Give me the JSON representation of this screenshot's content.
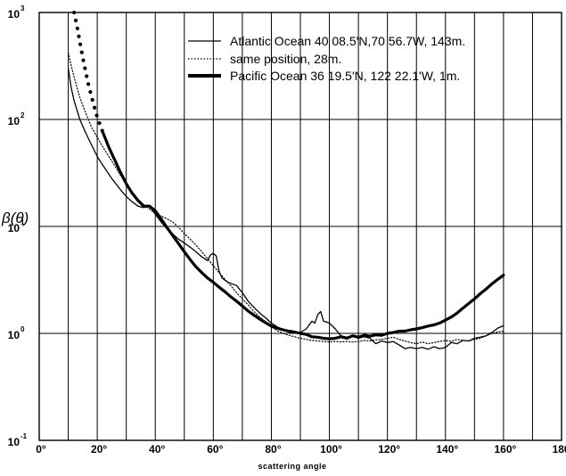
{
  "chart_data": {
    "type": "line",
    "title": "",
    "xlabel": "scattering angle",
    "ylabel": "β(θ)",
    "xlim": [
      0,
      180
    ],
    "ylim": [
      0.1,
      1000
    ],
    "yscale": "log",
    "grid": true,
    "legend_position": "top-right",
    "x_ticks": [
      {
        "value": 0,
        "label": "0°"
      },
      {
        "value": 20,
        "label": "20°"
      },
      {
        "value": 40,
        "label": "40°"
      },
      {
        "value": 60,
        "label": "60°"
      },
      {
        "value": 80,
        "label": "80°"
      },
      {
        "value": 100,
        "label": "100°"
      },
      {
        "value": 120,
        "label": "120°"
      },
      {
        "value": 140,
        "label": "140°"
      },
      {
        "value": 160,
        "label": "160°"
      },
      {
        "value": 180,
        "label": "180°"
      }
    ],
    "y_ticks": [
      {
        "value": 0.1,
        "base": "10",
        "exp": "-1"
      },
      {
        "value": 1,
        "base": "10",
        "exp": "0"
      },
      {
        "value": 10,
        "base": "10",
        "exp": "1"
      },
      {
        "value": 100,
        "base": "10",
        "exp": "2"
      },
      {
        "value": 1000,
        "base": "10",
        "exp": "3"
      }
    ],
    "series": [
      {
        "name": "Atlantic Ocean 40 08.5'N,70 56.7W, 143m.",
        "style": "thin",
        "color": "#000000",
        "points": [
          [
            10,
            300
          ],
          [
            11,
            200
          ],
          [
            12,
            150
          ],
          [
            14,
            100
          ],
          [
            16,
            75
          ],
          [
            18,
            58
          ],
          [
            20,
            45
          ],
          [
            22,
            37
          ],
          [
            25,
            28
          ],
          [
            28,
            22
          ],
          [
            30,
            19
          ],
          [
            32,
            17
          ],
          [
            34,
            15.5
          ],
          [
            36,
            15
          ],
          [
            38,
            15.5
          ],
          [
            40,
            13
          ],
          [
            42,
            11
          ],
          [
            44,
            9.5
          ],
          [
            46,
            8.5
          ],
          [
            48,
            7.6
          ],
          [
            50,
            7
          ],
          [
            52,
            6.4
          ],
          [
            54,
            5.8
          ],
          [
            56,
            5.2
          ],
          [
            58,
            4.8
          ],
          [
            59,
            5.4
          ],
          [
            60,
            5.6
          ],
          [
            61,
            5.3
          ],
          [
            62,
            3.8
          ],
          [
            63,
            3.3
          ],
          [
            65,
            3.0
          ],
          [
            68,
            2.8
          ],
          [
            70,
            2.4
          ],
          [
            72,
            2.0
          ],
          [
            74,
            1.75
          ],
          [
            76,
            1.55
          ],
          [
            78,
            1.4
          ],
          [
            80,
            1.25
          ],
          [
            82,
            1.15
          ],
          [
            84,
            1.08
          ],
          [
            86,
            1.03
          ],
          [
            88,
            1.01
          ],
          [
            90,
            1.02
          ],
          [
            92,
            1.1
          ],
          [
            94,
            1.3
          ],
          [
            95,
            1.25
          ],
          [
            96,
            1.5
          ],
          [
            97,
            1.6
          ],
          [
            98,
            1.3
          ],
          [
            100,
            1.25
          ],
          [
            102,
            1.1
          ],
          [
            104,
            0.95
          ],
          [
            106,
            0.92
          ],
          [
            108,
            0.95
          ],
          [
            110,
            0.9
          ],
          [
            112,
            0.93
          ],
          [
            114,
            0.9
          ],
          [
            116,
            0.8
          ],
          [
            118,
            0.85
          ],
          [
            120,
            0.82
          ],
          [
            122,
            0.84
          ],
          [
            124,
            0.78
          ],
          [
            126,
            0.72
          ],
          [
            128,
            0.74
          ],
          [
            130,
            0.72
          ],
          [
            132,
            0.74
          ],
          [
            134,
            0.71
          ],
          [
            136,
            0.75
          ],
          [
            138,
            0.72
          ],
          [
            140,
            0.74
          ],
          [
            142,
            0.82
          ],
          [
            144,
            0.8
          ],
          [
            146,
            0.86
          ],
          [
            148,
            0.85
          ],
          [
            150,
            0.9
          ],
          [
            152,
            0.92
          ],
          [
            154,
            0.95
          ],
          [
            156,
            1.02
          ],
          [
            158,
            1.12
          ],
          [
            160,
            1.18
          ]
        ]
      },
      {
        "name": "same position, 28m.",
        "style": "dotted",
        "color": "#000000",
        "points": [
          [
            10,
            420
          ],
          [
            11,
            320
          ],
          [
            12,
            250
          ],
          [
            14,
            160
          ],
          [
            16,
            115
          ],
          [
            18,
            85
          ],
          [
            20,
            68
          ],
          [
            22,
            55
          ],
          [
            24,
            45
          ],
          [
            26,
            37
          ],
          [
            28,
            30
          ],
          [
            30,
            25
          ],
          [
            32,
            21
          ],
          [
            34,
            18
          ],
          [
            36,
            16
          ],
          [
            38,
            14.5
          ],
          [
            40,
            13.2
          ],
          [
            42,
            12.5
          ],
          [
            44,
            11.8
          ],
          [
            46,
            11
          ],
          [
            48,
            9.8
          ],
          [
            50,
            8.6
          ],
          [
            52,
            7.6
          ],
          [
            54,
            6.7
          ],
          [
            56,
            5.8
          ],
          [
            58,
            5.0
          ],
          [
            60,
            4.3
          ],
          [
            62,
            3.7
          ],
          [
            64,
            3.2
          ],
          [
            66,
            2.8
          ],
          [
            68,
            2.4
          ],
          [
            70,
            2.1
          ],
          [
            72,
            1.85
          ],
          [
            74,
            1.6
          ],
          [
            76,
            1.42
          ],
          [
            78,
            1.28
          ],
          [
            80,
            1.15
          ],
          [
            82,
            1.06
          ],
          [
            84,
            1.0
          ],
          [
            86,
            0.96
          ],
          [
            88,
            0.93
          ],
          [
            90,
            0.9
          ],
          [
            92,
            0.88
          ],
          [
            94,
            0.86
          ],
          [
            96,
            0.85
          ],
          [
            98,
            0.84
          ],
          [
            100,
            0.83
          ],
          [
            102,
            0.84
          ],
          [
            104,
            0.83
          ],
          [
            106,
            0.84
          ],
          [
            108,
            0.83
          ],
          [
            110,
            0.84
          ],
          [
            112,
            0.86
          ],
          [
            114,
            0.85
          ],
          [
            116,
            0.87
          ],
          [
            118,
            0.88
          ],
          [
            120,
            0.9
          ],
          [
            122,
            0.92
          ],
          [
            124,
            0.88
          ],
          [
            126,
            0.85
          ],
          [
            128,
            0.82
          ],
          [
            130,
            0.8
          ],
          [
            132,
            0.83
          ],
          [
            134,
            0.8
          ],
          [
            136,
            0.82
          ],
          [
            138,
            0.84
          ],
          [
            140,
            0.86
          ],
          [
            142,
            0.84
          ],
          [
            144,
            0.88
          ],
          [
            146,
            0.86
          ],
          [
            148,
            0.85
          ],
          [
            150,
            0.88
          ],
          [
            152,
            0.9
          ],
          [
            154,
            0.95
          ],
          [
            156,
            1.0
          ],
          [
            158,
            1.03
          ],
          [
            160,
            1.05
          ]
        ]
      },
      {
        "name": "Pacific Ocean 36 19.5'N, 122 22.1'W, 1m.",
        "style": "thick",
        "color": "#000000",
        "start_style": "dotted",
        "points": [
          [
            12,
            1000
          ],
          [
            13,
            750
          ],
          [
            14,
            530
          ],
          [
            15,
            380
          ],
          [
            16,
            280
          ],
          [
            17,
            210
          ],
          [
            18,
            165
          ],
          [
            19,
            130
          ],
          [
            20,
            105
          ],
          [
            22,
            75
          ],
          [
            24,
            55
          ],
          [
            26,
            42
          ],
          [
            28,
            32
          ],
          [
            30,
            25
          ],
          [
            32,
            20.5
          ],
          [
            34,
            17.5
          ],
          [
            36,
            15.5
          ],
          [
            38,
            15.5
          ],
          [
            40,
            14
          ],
          [
            42,
            11.8
          ],
          [
            44,
            9.8
          ],
          [
            46,
            8.2
          ],
          [
            48,
            6.9
          ],
          [
            50,
            5.8
          ],
          [
            52,
            4.9
          ],
          [
            54,
            4.2
          ],
          [
            56,
            3.7
          ],
          [
            58,
            3.3
          ],
          [
            60,
            3.0
          ],
          [
            62,
            2.7
          ],
          [
            64,
            2.45
          ],
          [
            66,
            2.2
          ],
          [
            68,
            2.0
          ],
          [
            70,
            1.8
          ],
          [
            72,
            1.62
          ],
          [
            74,
            1.48
          ],
          [
            76,
            1.36
          ],
          [
            78,
            1.26
          ],
          [
            80,
            1.17
          ],
          [
            82,
            1.12
          ],
          [
            84,
            1.08
          ],
          [
            86,
            1.05
          ],
          [
            88,
            1.03
          ],
          [
            90,
            1.0
          ],
          [
            92,
            0.98
          ],
          [
            94,
            0.93
          ],
          [
            96,
            0.92
          ],
          [
            98,
            0.9
          ],
          [
            100,
            0.89
          ],
          [
            102,
            0.9
          ],
          [
            104,
            0.93
          ],
          [
            106,
            0.9
          ],
          [
            108,
            0.95
          ],
          [
            110,
            0.92
          ],
          [
            112,
            0.96
          ],
          [
            114,
            0.94
          ],
          [
            116,
            0.97
          ],
          [
            118,
            0.96
          ],
          [
            120,
            1.0
          ],
          [
            122,
            1.02
          ],
          [
            124,
            1.05
          ],
          [
            126,
            1.05
          ],
          [
            128,
            1.08
          ],
          [
            130,
            1.1
          ],
          [
            132,
            1.13
          ],
          [
            134,
            1.17
          ],
          [
            136,
            1.2
          ],
          [
            138,
            1.25
          ],
          [
            140,
            1.33
          ],
          [
            142,
            1.42
          ],
          [
            144,
            1.55
          ],
          [
            146,
            1.72
          ],
          [
            148,
            1.9
          ],
          [
            150,
            2.1
          ],
          [
            152,
            2.35
          ],
          [
            154,
            2.6
          ],
          [
            156,
            2.9
          ],
          [
            158,
            3.2
          ],
          [
            160,
            3.5
          ]
        ]
      }
    ]
  }
}
